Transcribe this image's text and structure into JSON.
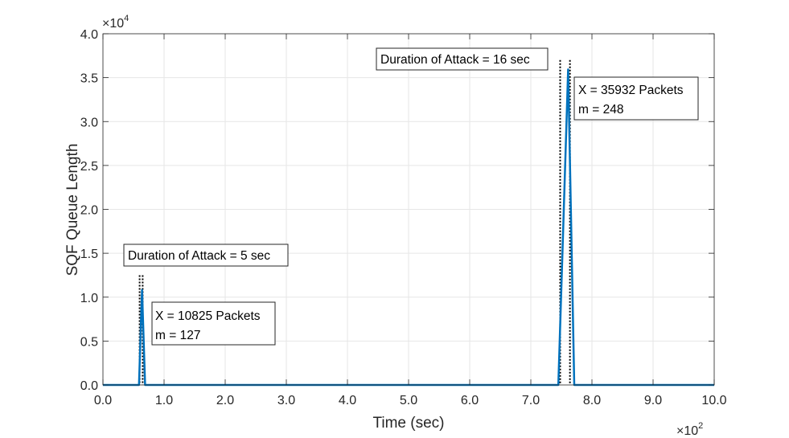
{
  "chart_data": {
    "type": "line",
    "xlabel": "Time (sec)",
    "ylabel": "SQF Queue Length",
    "xlim": [
      0,
      1000
    ],
    "ylim": [
      0,
      40000
    ],
    "x_ticks": [
      0,
      100,
      200,
      300,
      400,
      500,
      600,
      700,
      800,
      900,
      1000
    ],
    "x_tick_labels": [
      "0.0",
      "1.0",
      "2.0",
      "3.0",
      "4.0",
      "5.0",
      "6.0",
      "7.0",
      "8.0",
      "9.0",
      "10.0"
    ],
    "y_ticks": [
      0,
      5000,
      10000,
      15000,
      20000,
      25000,
      30000,
      35000,
      40000
    ],
    "y_tick_labels": [
      "0.0",
      "0.5",
      "1.0",
      "1.5",
      "2.0",
      "2.5",
      "3.0",
      "3.5",
      "4.0"
    ],
    "x_exponent": {
      "base": "×10",
      "power": "2"
    },
    "y_exponent": {
      "base": "×10",
      "power": "4"
    },
    "grid": true,
    "series": [
      {
        "color": "#0072BD",
        "x": [
          0,
          59,
          64,
          69,
          745,
          761,
          771,
          1000
        ],
        "y": [
          0,
          0,
          10825,
          0,
          0,
          35932,
          0,
          0
        ]
      }
    ],
    "attack_windows": [
      {
        "x_start": 60,
        "x_end": 65,
        "y_top": 12500
      },
      {
        "x_start": 748,
        "x_end": 764,
        "y_top": 37000
      }
    ],
    "annotations": [
      {
        "lines": [
          "Duration of Attack = 5 sec"
        ]
      },
      {
        "lines": [
          "X = 10825 Packets",
          "m = 127"
        ]
      },
      {
        "lines": [
          "Duration of Attack = 16 sec"
        ]
      },
      {
        "lines": [
          "X = 35932 Packets",
          "m = 248"
        ]
      }
    ]
  }
}
